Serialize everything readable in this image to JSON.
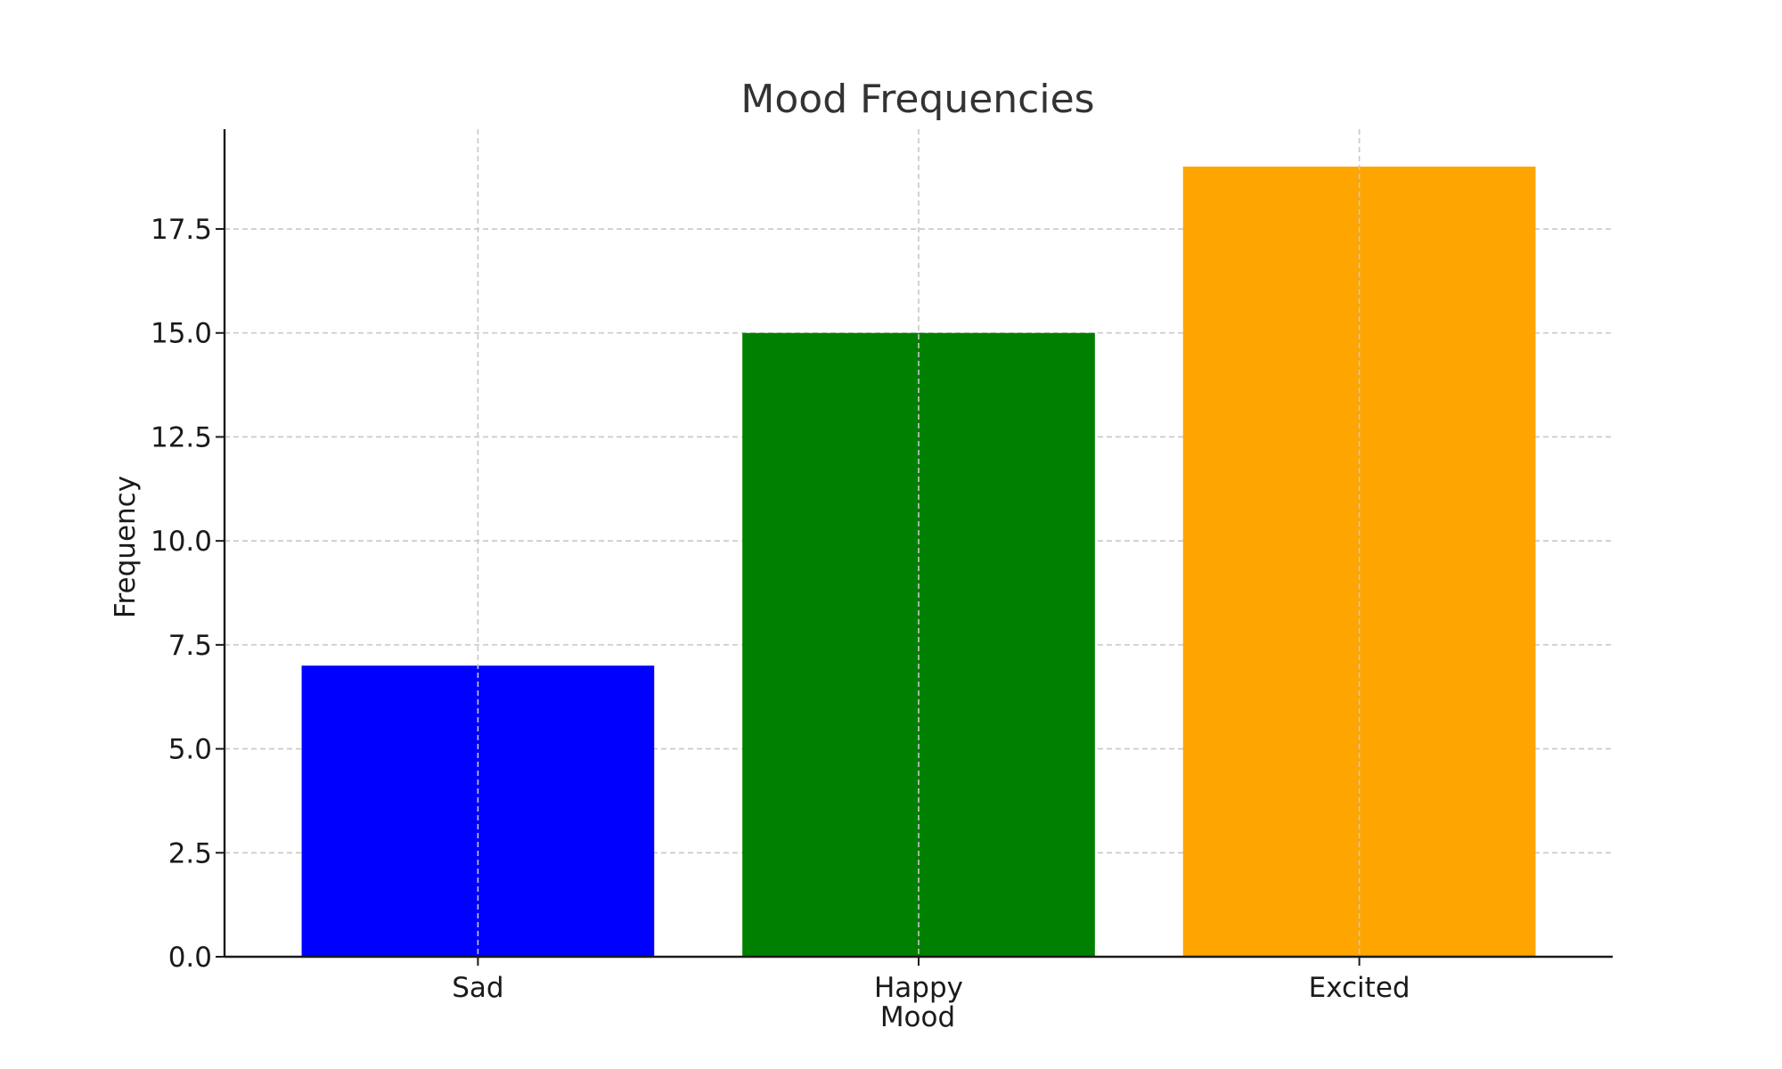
{
  "chart_data": {
    "type": "bar",
    "title": "Mood Frequencies",
    "xlabel": "Mood",
    "ylabel": "Frequency",
    "categories": [
      "Sad",
      "Happy",
      "Excited"
    ],
    "values": [
      7,
      15,
      19
    ],
    "colors": [
      "#0000ff",
      "#008000",
      "#ffa500"
    ],
    "ylim": [
      0,
      20
    ],
    "yticks": [
      0,
      2.5,
      5,
      7.5,
      10,
      12.5,
      15,
      17.5
    ],
    "ytick_labels": [
      "0.0",
      "2.5",
      "5.0",
      "7.5",
      "10.0",
      "12.5",
      "15.0",
      "17.5"
    ],
    "grid": true
  }
}
